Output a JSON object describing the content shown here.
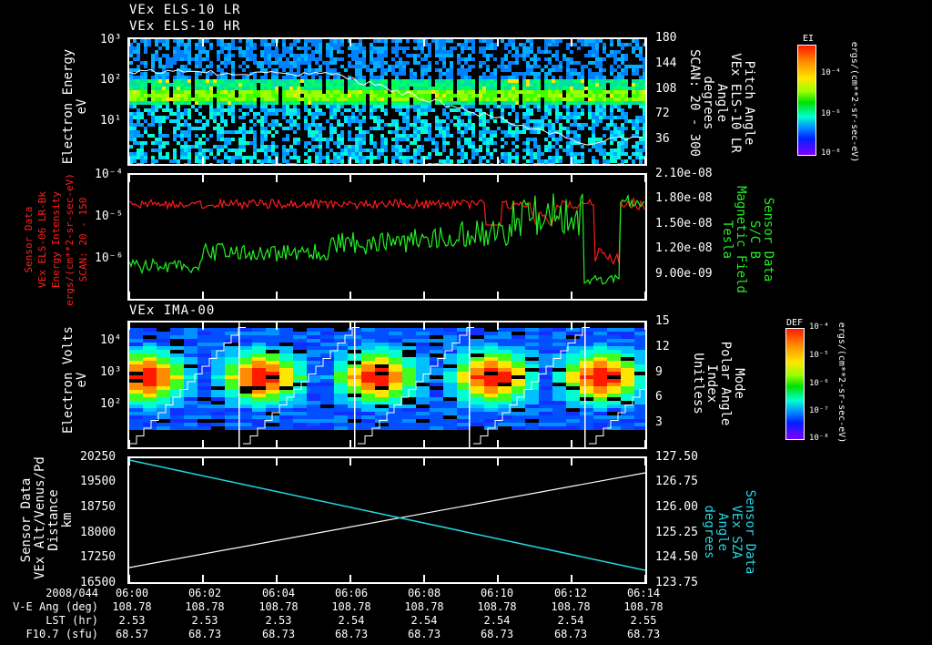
{
  "titles": {
    "line1": "VEx ELS-10 LR",
    "line2": "VEx ELS-10 HR",
    "ima": "VEx IMA-00"
  },
  "panel1": {
    "left_label": "Electron Energy\neV",
    "left_ticks": [
      "10³",
      "10²",
      "10¹"
    ],
    "right_ticks": [
      "180",
      "144",
      "108",
      "72",
      "36"
    ],
    "right_label": "Pitch Angle\nVEx ELS-10 LR\nAngle\ndegrees\nSCAN: 20 - 300",
    "colorbar": {
      "title": "EI",
      "ticks": [
        "10⁻⁴",
        "10⁻⁶",
        "10⁻⁸"
      ],
      "units": "ergs/(cm**2-sr-sec-eV)"
    }
  },
  "panel2": {
    "left_label": "Sensor Data\nVEx ELS-06 LR-Bk\nEnergy Intensity\nergs/(cm**2-sr-sec-eV)\nSCAN: 20 - 150",
    "left_ticks": [
      "10⁻⁴",
      "10⁻⁵",
      "10⁻⁶"
    ],
    "right_ticks": [
      "2.10e-08",
      "1.80e-08",
      "1.50e-08",
      "1.20e-08",
      "9.00e-09"
    ],
    "right_label": "Sensor Data\nS/C B\nMagnetic Field\nTesla",
    "colors": {
      "energy": "#ff1a1a",
      "field": "#22ee22"
    }
  },
  "panel3": {
    "left_label": "Electron Volts\neV",
    "left_ticks": [
      "10⁴",
      "10³",
      "10²"
    ],
    "right_ticks": [
      "15",
      "12",
      "9",
      "6",
      "3"
    ],
    "right_label": "Mode\nPolar Angle\nIndex\nUnitless",
    "colorbar": {
      "title": "DEF",
      "ticks": [
        "10⁻⁴",
        "10⁻⁵",
        "10⁻⁶",
        "10⁻⁷",
        "10⁻⁸"
      ],
      "units": "ergs/(cm**2-sr-sec-eV)"
    }
  },
  "panel4": {
    "left_label": "Sensor Data\nVEx Alt/Venus/Pd\nDistance\nkm",
    "left_ticks": [
      "20250",
      "19500",
      "18750",
      "18000",
      "17250",
      "16500"
    ],
    "right_ticks": [
      "127.50",
      "126.75",
      "126.00",
      "125.25",
      "124.50",
      "123.75"
    ],
    "right_label": "Sensor Data\nVEx SZA\nAngle\ndegrees",
    "colors": {
      "distance": "#ffffff",
      "sza": "#22d8e8"
    }
  },
  "footer": {
    "row_labels": [
      "2008/044",
      "V-E Ang (deg)",
      "LST (hr)",
      "F10.7 (sfu)"
    ],
    "times": [
      "06:00",
      "06:02",
      "06:04",
      "06:06",
      "06:08",
      "06:10",
      "06:12",
      "06:14"
    ],
    "ve_ang": [
      "108.78",
      "108.78",
      "108.78",
      "108.78",
      "108.78",
      "108.78",
      "108.78",
      "108.78"
    ],
    "lst": [
      "2.53",
      "2.53",
      "2.53",
      "2.54",
      "2.54",
      "2.54",
      "2.54",
      "2.55"
    ],
    "f107": [
      "68.57",
      "68.73",
      "68.73",
      "68.73",
      "68.73",
      "68.73",
      "68.73",
      "68.73"
    ]
  },
  "chart_data": [
    {
      "type": "heatmap",
      "title": "VEx ELS-10 LR / VEx ELS-10 HR",
      "xlabel": "Time (UT) 2008/044",
      "ylabel": "Electron Energy (eV)",
      "y_scale": "log",
      "ylim": [
        2,
        1000
      ],
      "x": [
        "06:00",
        "06:02",
        "06:04",
        "06:06",
        "06:08",
        "06:10",
        "06:12",
        "06:14"
      ],
      "description": "Energy-time spectrogram with bright band ~30-60 eV; overlaid white pitch-angle line decreasing from ~150 deg to ~30 deg",
      "overlay_series": {
        "name": "Pitch Angle (deg)",
        "ylim": [
          0,
          180
        ],
        "x": [
          "06:00",
          "06:02",
          "06:04",
          "06:06",
          "06:08",
          "06:10",
          "06:12",
          "06:14"
        ],
        "values": [
          150,
          140,
          135,
          128,
          110,
          80,
          50,
          30
        ]
      },
      "colorbar": {
        "label": "EI ergs/(cm**2-sr-sec-eV)",
        "range": [
          1e-08,
          0.001
        ],
        "scale": "log"
      }
    },
    {
      "type": "line",
      "title": "ELS-06 Energy Intensity & S/C Magnetic Field",
      "x": [
        "06:00",
        "06:02",
        "06:04",
        "06:06",
        "06:08",
        "06:10",
        "06:12",
        "06:14"
      ],
      "series": [
        {
          "name": "VEx ELS-06 LR-Bk Energy Intensity (ergs/(cm**2-sr-sec-eV))",
          "axis": "left",
          "scale": "log",
          "values": [
            1.8e-05,
            2e-05,
            2e-05,
            2.2e-05,
            1.1e-05,
            1.5e-05,
            1.5e-06,
            3e-05
          ]
        },
        {
          "name": "S/C B Magnetic Field (Tesla)",
          "axis": "right",
          "values": [
            1.05e-08,
            1.2e-08,
            1.25e-08,
            1.3e-08,
            1.35e-08,
            1.6e-08,
            8.5e-09,
            1.85e-08
          ]
        }
      ],
      "ylim_left": [
        3e-07,
        0.0001
      ],
      "ylim_right": [
        7e-09,
        2.1e-08
      ]
    },
    {
      "type": "heatmap",
      "title": "VEx IMA-00",
      "ylabel": "Electron Volts (eV)",
      "y_scale": "log",
      "ylim": [
        10,
        40000
      ],
      "x": [
        "06:00",
        "06:02",
        "06:04",
        "06:06",
        "06:08",
        "06:10",
        "06:12",
        "06:14"
      ],
      "description": "Ion spectrogram with periodic red peaks near ~700 eV; overlaid white staircase polar angle index ramping 0->15 repeatedly",
      "overlay_series": {
        "name": "Mode Polar Angle Index",
        "ylim": [
          0,
          15
        ],
        "pattern": "sawtooth 0-15, period ~3 min"
      },
      "colorbar": {
        "label": "DEF ergs/(cm**2-sr-sec-eV)",
        "range": [
          1e-08,
          0.0001
        ],
        "scale": "log"
      }
    },
    {
      "type": "line",
      "title": "VEx Altitude & SZA",
      "x": [
        "06:00",
        "06:02",
        "06:04",
        "06:06",
        "06:08",
        "06:10",
        "06:12",
        "06:14"
      ],
      "series": [
        {
          "name": "VEx Alt/Venus/Pd Distance (km)",
          "axis": "left",
          "values": [
            16880,
            17250,
            17620,
            17990,
            18370,
            18740,
            19110,
            19500
          ]
        },
        {
          "name": "VEx SZA Angle (degrees)",
          "axis": "right",
          "values": [
            127.45,
            126.9,
            126.35,
            125.8,
            125.25,
            124.7,
            124.2,
            123.85
          ]
        }
      ],
      "ylim_left": [
        16500,
        20250
      ],
      "ylim_right": [
        123.75,
        127.5
      ]
    }
  ]
}
